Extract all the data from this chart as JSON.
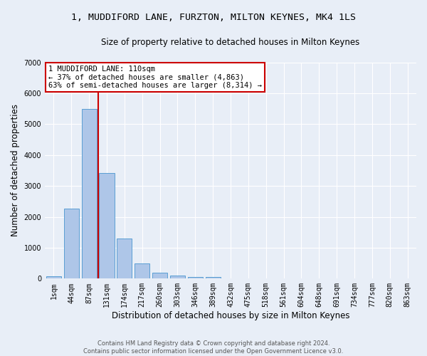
{
  "title1": "1, MUDDIFORD LANE, FURZTON, MILTON KEYNES, MK4 1LS",
  "title2": "Size of property relative to detached houses in Milton Keynes",
  "xlabel": "Distribution of detached houses by size in Milton Keynes",
  "ylabel": "Number of detached properties",
  "footer1": "Contains HM Land Registry data © Crown copyright and database right 2024.",
  "footer2": "Contains public sector information licensed under the Open Government Licence v3.0.",
  "annotation_line1": "1 MUDDIFORD LANE: 110sqm",
  "annotation_line2": "← 37% of detached houses are smaller (4,863)",
  "annotation_line3": "63% of semi-detached houses are larger (8,314) →",
  "bar_labels": [
    "1sqm",
    "44sqm",
    "87sqm",
    "131sqm",
    "174sqm",
    "217sqm",
    "260sqm",
    "303sqm",
    "346sqm",
    "389sqm",
    "432sqm",
    "475sqm",
    "518sqm",
    "561sqm",
    "604sqm",
    "648sqm",
    "691sqm",
    "734sqm",
    "777sqm",
    "820sqm",
    "863sqm"
  ],
  "bar_values": [
    70,
    2270,
    5480,
    3420,
    1300,
    490,
    200,
    100,
    65,
    45,
    0,
    0,
    0,
    0,
    0,
    0,
    0,
    0,
    0,
    0,
    0
  ],
  "bar_color": "#aec6e8",
  "bar_edge_color": "#5a9fd4",
  "vline_x": 2.5,
  "vline_color": "#cc0000",
  "annotation_box_color": "#cc0000",
  "bg_color": "#e8eef7",
  "grid_color": "#ffffff",
  "ylim": [
    0,
    7000
  ],
  "yticks": [
    0,
    1000,
    2000,
    3000,
    4000,
    5000,
    6000,
    7000
  ],
  "title1_fontsize": 9.5,
  "title2_fontsize": 8.5,
  "xlabel_fontsize": 8.5,
  "ylabel_fontsize": 8.5,
  "tick_fontsize": 7,
  "footer_fontsize": 6,
  "ann_fontsize": 7.5
}
